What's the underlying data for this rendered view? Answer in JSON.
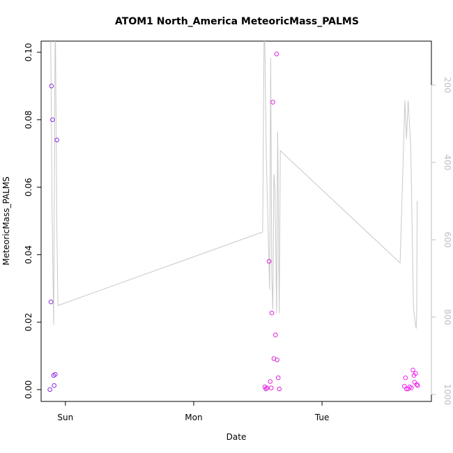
{
  "chart_data": {
    "type": "scatter",
    "title": "ATOM1 North_America MeteoricMass_PALMS",
    "xlabel": "Date",
    "ylabel": "MeteoricMass_PALMS",
    "x_units": "hours",
    "x_tick_labels": [
      {
        "x": 24,
        "label": "Sun"
      },
      {
        "x": 48,
        "label": "Mon"
      },
      {
        "x": 72,
        "label": "Tue"
      }
    ],
    "ylim": [
      0,
      0.1
    ],
    "y_ticks": [
      0.0,
      0.02,
      0.04,
      0.06,
      0.08,
      0.1
    ],
    "y_tick_labels": [
      "0.00",
      "0.02",
      "0.04",
      "0.06",
      "0.08",
      "0.10"
    ],
    "y2_range": [
      0,
      1000
    ],
    "y2_reversed": true,
    "y2_ticks": [
      200,
      400,
      600,
      800,
      1000
    ],
    "y2_tick_labels": [
      "200",
      "400",
      "600",
      "800",
      "1000"
    ],
    "grid": false,
    "colors": {
      "series_day1": "#8a2be2",
      "series_day2": "#e01fe0",
      "series_day3": "#ee22ee",
      "secondary_line": "#c8c8c8",
      "axis_right": "#bebebe"
    },
    "series": [
      {
        "color_key": "series_day1",
        "marker": "open-circle",
        "points": [
          {
            "x": 21.1,
            "y": 0.0
          },
          {
            "x": 21.3,
            "y": 0.026
          },
          {
            "x": 21.4,
            "y": 0.09
          },
          {
            "x": 21.6,
            "y": 0.08
          },
          {
            "x": 21.8,
            "y": 0.0042
          },
          {
            "x": 21.9,
            "y": 0.0012
          },
          {
            "x": 22.1,
            "y": 0.0045
          },
          {
            "x": 22.4,
            "y": 0.074
          }
        ]
      },
      {
        "color_key": "series_day2",
        "marker": "open-circle",
        "points": [
          {
            "x": 61.3,
            "y": 0.0008
          },
          {
            "x": 61.5,
            "y": 0.0002
          },
          {
            "x": 61.7,
            "y": 0.0005
          },
          {
            "x": 62.1,
            "y": 0.038
          },
          {
            "x": 62.3,
            "y": 0.0024
          },
          {
            "x": 62.5,
            "y": 0.0005
          },
          {
            "x": 62.6,
            "y": 0.0227
          },
          {
            "x": 62.8,
            "y": 0.0852
          },
          {
            "x": 63.0,
            "y": 0.0092
          },
          {
            "x": 63.3,
            "y": 0.0162
          },
          {
            "x": 63.5,
            "y": 0.0995
          },
          {
            "x": 63.6,
            "y": 0.0088
          },
          {
            "x": 63.8,
            "y": 0.0035
          },
          {
            "x": 64.0,
            "y": 0.0002
          }
        ]
      },
      {
        "color_key": "series_day3",
        "marker": "open-circle",
        "points": [
          {
            "x": 87.4,
            "y": 0.001
          },
          {
            "x": 87.6,
            "y": 0.0035
          },
          {
            "x": 87.8,
            "y": 0.0002
          },
          {
            "x": 88.1,
            "y": 0.0002
          },
          {
            "x": 88.4,
            "y": 0.0008
          },
          {
            "x": 88.7,
            "y": 0.0005
          },
          {
            "x": 89.0,
            "y": 0.0058
          },
          {
            "x": 89.2,
            "y": 0.0042
          },
          {
            "x": 89.3,
            "y": 0.0022
          },
          {
            "x": 89.5,
            "y": 0.0048
          },
          {
            "x": 89.7,
            "y": 0.0015
          },
          {
            "x": 89.9,
            "y": 0.0012
          }
        ]
      }
    ],
    "secondary_line": {
      "axis": "y2",
      "points": [
        {
          "x": 21.2,
          "y2": 0
        },
        {
          "x": 21.5,
          "y2": 520
        },
        {
          "x": 21.8,
          "y2": 820
        },
        {
          "x": 22.1,
          "y2": 0
        },
        {
          "x": 22.4,
          "y2": 570
        },
        {
          "x": 22.6,
          "y2": 770
        },
        {
          "x": 60.9,
          "y2": 580
        },
        {
          "x": 61.2,
          "y2": 0
        },
        {
          "x": 61.6,
          "y2": 400
        },
        {
          "x": 62.2,
          "y2": 730
        },
        {
          "x": 62.4,
          "y2": 130
        },
        {
          "x": 62.6,
          "y2": 700
        },
        {
          "x": 62.8,
          "y2": 780
        },
        {
          "x": 63.0,
          "y2": 430
        },
        {
          "x": 63.2,
          "y2": 470
        },
        {
          "x": 63.5,
          "y2": 790
        },
        {
          "x": 63.7,
          "y2": 320
        },
        {
          "x": 64.0,
          "y2": 790
        },
        {
          "x": 64.2,
          "y2": 370
        },
        {
          "x": 86.6,
          "y2": 660
        },
        {
          "x": 87.5,
          "y2": 240
        },
        {
          "x": 87.8,
          "y2": 340
        },
        {
          "x": 88.1,
          "y2": 240
        },
        {
          "x": 88.6,
          "y2": 360
        },
        {
          "x": 89.1,
          "y2": 780
        },
        {
          "x": 89.6,
          "y2": 830
        },
        {
          "x": 89.7,
          "y2": 790
        },
        {
          "x": 89.8,
          "y2": 500
        }
      ]
    }
  }
}
